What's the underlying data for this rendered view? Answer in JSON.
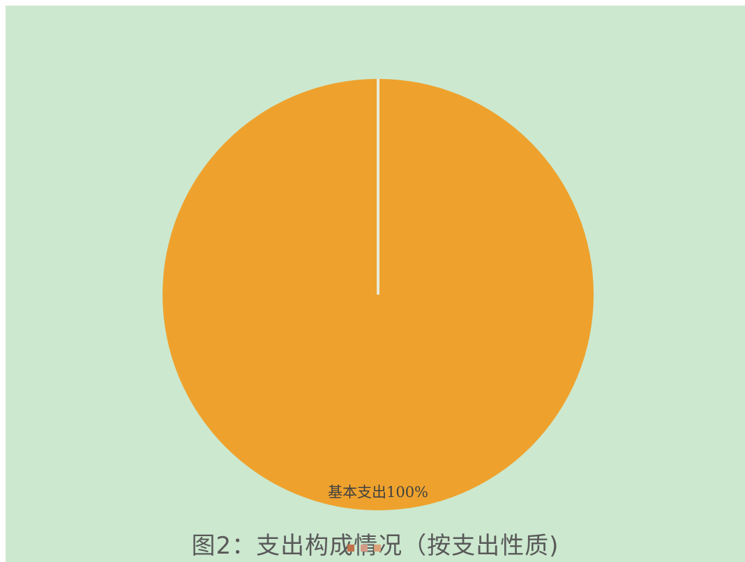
{
  "chart_data": {
    "type": "pie",
    "title": "图2：支出构成情况（按支出性质)",
    "categories": [
      "",
      "基本支出",
      ""
    ],
    "values": [
      0,
      100,
      0
    ],
    "data_labels": [
      "基本支出100%"
    ],
    "legend_colors": [
      "#c0714a",
      "#d49a86",
      "#dba27a"
    ],
    "slice_color": "#eea22d",
    "separator_color": "#e8ead9",
    "background": "#cce8cf",
    "legend_position": "bottom"
  }
}
